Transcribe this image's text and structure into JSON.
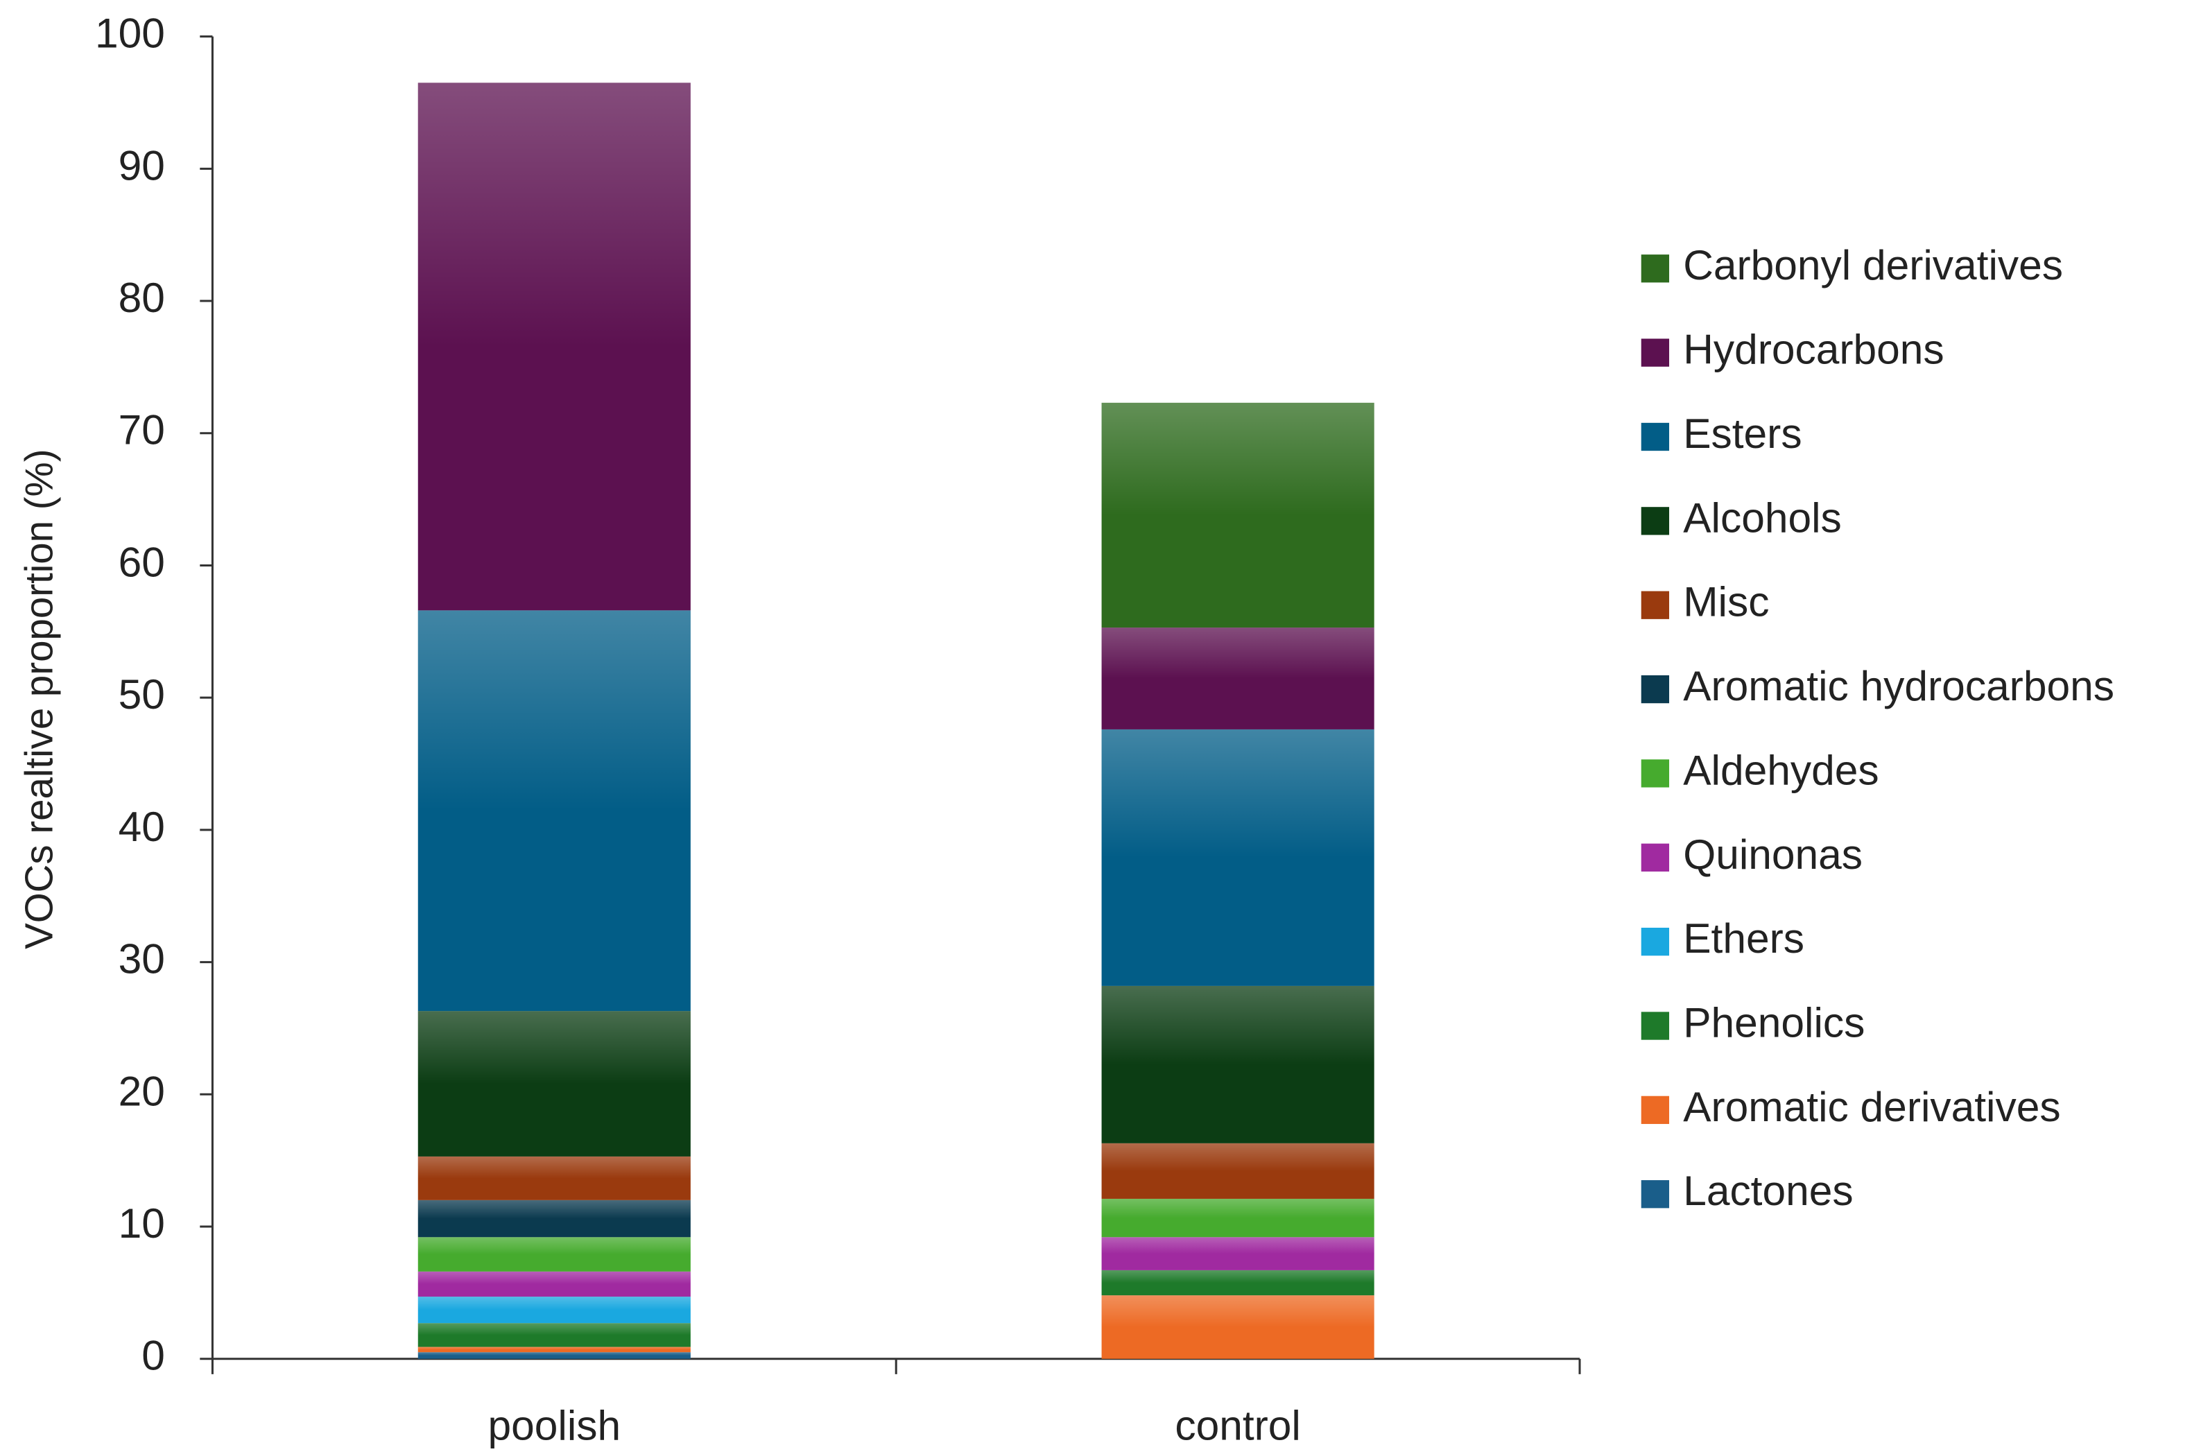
{
  "chart_data": {
    "type": "stacked_bar",
    "ylabel": "VOCs realtive proportion (%)",
    "categories": [
      "poolish",
      "control"
    ],
    "series": [
      {
        "name": "Lactones",
        "color": "#1a5e8a",
        "values": [
          0.5,
          0
        ]
      },
      {
        "name": "Aromatic derivatives",
        "color": "#ed6a24",
        "values": [
          0.4,
          4.8
        ]
      },
      {
        "name": "Phenolics",
        "color": "#1e7a2a",
        "values": [
          1.8,
          1.9
        ]
      },
      {
        "name": "Ethers",
        "color": "#1aa8e0",
        "values": [
          2.0,
          0
        ]
      },
      {
        "name": "Quinonas",
        "color": "#a02aa0",
        "values": [
          1.9,
          2.5
        ]
      },
      {
        "name": "Aldehydes",
        "color": "#46ab2e",
        "values": [
          2.6,
          2.9
        ]
      },
      {
        "name": "Aromatic hydrocarbons",
        "color": "#0b3a4f",
        "values": [
          2.8,
          0
        ]
      },
      {
        "name": "Misc",
        "color": "#9a3a0e",
        "values": [
          3.3,
          4.2
        ]
      },
      {
        "name": "Alcohols",
        "color": "#0c3d14",
        "values": [
          11.0,
          11.9
        ]
      },
      {
        "name": "Esters",
        "color": "#025d87",
        "values": [
          30.3,
          19.4
        ]
      },
      {
        "name": "Hydrocarbons",
        "color": "#5c1150",
        "values": [
          39.9,
          7.7
        ]
      },
      {
        "name": "Carbonyl derivatives",
        "color": "#2e6b1e",
        "values": [
          0,
          17.0
        ]
      }
    ],
    "ylim": [
      0,
      100
    ],
    "yticks": [
      0,
      10,
      20,
      30,
      40,
      50,
      60,
      70,
      80,
      90,
      100
    ],
    "legend": "right"
  }
}
